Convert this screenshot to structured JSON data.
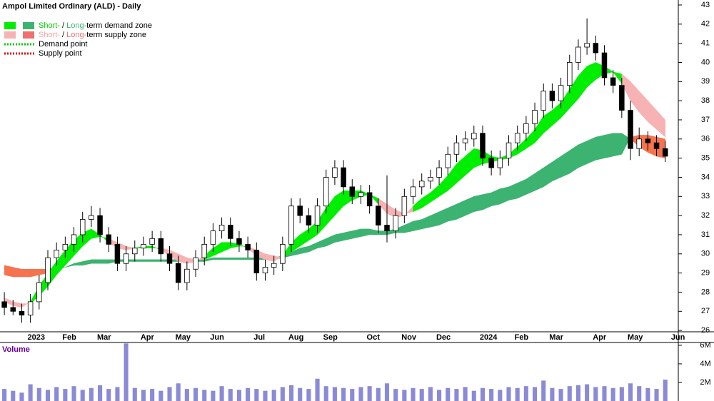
{
  "chart_data": {
    "type": "candlestick",
    "title": "Ampol Limited Ordinary (ALD) - Daily",
    "categories": [
      null,
      null,
      null,
      "2023",
      null,
      null,
      null,
      "Feb",
      null,
      null,
      null,
      "Mar",
      null,
      null,
      null,
      null,
      "Apr",
      null,
      null,
      null,
      "May",
      null,
      null,
      null,
      "Jun",
      null,
      null,
      null,
      null,
      "Jul",
      null,
      null,
      null,
      "Aug",
      null,
      null,
      null,
      "Sep",
      null,
      null,
      null,
      null,
      "Oct",
      null,
      null,
      null,
      "Nov",
      null,
      null,
      null,
      "Dec",
      null,
      null,
      null,
      null,
      "2024",
      null,
      null,
      null,
      "Feb",
      null,
      null,
      null,
      "Mar",
      null,
      null,
      null,
      null,
      "Apr",
      null,
      null,
      null,
      "May",
      null,
      null,
      null,
      null,
      "Jun"
    ],
    "open": [
      27.5,
      27.2,
      27.0,
      26.8,
      27.5,
      28.5,
      29.8,
      30.2,
      30.5,
      31.0,
      31.8,
      32.0,
      31.0,
      30.5,
      29.5,
      30.0,
      30.3,
      30.5,
      30.8,
      30.0,
      29.5,
      28.5,
      29.2,
      29.8,
      30.5,
      31.2,
      31.5,
      30.8,
      30.5,
      30.2,
      29.0,
      29.3,
      29.5,
      30.5,
      32.5,
      32.0,
      31.5,
      32.5,
      34.0,
      34.5,
      33.5,
      33.0,
      33.2,
      32.5,
      31.5,
      31.2,
      32.0,
      33.0,
      33.5,
      33.8,
      34.0,
      34.5,
      35.2,
      35.8,
      36.0,
      36.3,
      35.0,
      34.5,
      35.0,
      35.8,
      36.3,
      36.8,
      37.5,
      38.5,
      38.0,
      38.8,
      40.0,
      40.8,
      41.0,
      40.5,
      39.2,
      38.8,
      37.5,
      35.5,
      36.0,
      35.8,
      35.5,
      null
    ],
    "high": [
      28.0,
      27.6,
      27.4,
      27.9,
      28.9,
      30.2,
      30.6,
      30.9,
      31.4,
      32.2,
      32.5,
      32.4,
      31.4,
      30.9,
      30.4,
      30.7,
      30.9,
      31.2,
      31.2,
      30.4,
      29.9,
      29.6,
      30.2,
      30.9,
      31.6,
      31.9,
      31.9,
      31.2,
      30.9,
      30.6,
      29.7,
      29.9,
      30.9,
      32.9,
      32.9,
      32.4,
      32.9,
      34.4,
      34.9,
      34.9,
      33.9,
      33.6,
      33.6,
      32.9,
      34.1,
      32.4,
      33.4,
      33.9,
      34.2,
      34.4,
      34.9,
      35.6,
      36.2,
      36.4,
      36.7,
      36.7,
      35.4,
      35.4,
      36.2,
      36.7,
      37.2,
      37.9,
      38.9,
      38.9,
      39.2,
      40.4,
      41.2,
      42.3,
      41.4,
      40.9,
      39.6,
      39.2,
      38.0,
      36.6,
      36.4,
      36.2,
      35.9,
      null
    ],
    "low": [
      26.8,
      26.8,
      26.4,
      26.4,
      27.1,
      28.1,
      29.4,
      29.8,
      30.1,
      30.6,
      31.4,
      30.6,
      30.1,
      29.1,
      29.1,
      29.6,
      29.9,
      30.1,
      29.6,
      29.1,
      28.1,
      28.1,
      28.8,
      29.4,
      30.1,
      30.8,
      30.4,
      30.1,
      29.8,
      28.6,
      28.6,
      28.9,
      29.1,
      30.1,
      31.6,
      31.1,
      31.1,
      32.1,
      33.6,
      33.1,
      32.6,
      32.6,
      32.1,
      31.1,
      30.6,
      30.8,
      31.6,
      32.6,
      33.1,
      33.4,
      33.6,
      34.1,
      34.8,
      35.4,
      35.6,
      34.6,
      34.1,
      34.1,
      34.6,
      35.4,
      35.9,
      36.4,
      37.1,
      37.6,
      37.6,
      38.4,
      39.6,
      40.4,
      40.1,
      38.8,
      38.4,
      37.1,
      34.9,
      35.1,
      35.4,
      35.1,
      34.8,
      null
    ],
    "close": [
      27.2,
      27.0,
      26.8,
      27.5,
      28.5,
      29.8,
      30.2,
      30.5,
      31.0,
      31.8,
      32.0,
      31.0,
      30.5,
      29.5,
      30.0,
      30.3,
      30.5,
      30.8,
      30.0,
      29.5,
      28.5,
      29.2,
      29.8,
      30.5,
      31.2,
      31.5,
      30.8,
      30.5,
      30.2,
      29.0,
      29.3,
      29.5,
      30.5,
      32.5,
      32.0,
      31.5,
      32.5,
      34.0,
      34.5,
      33.5,
      33.0,
      33.2,
      32.5,
      31.5,
      31.2,
      32.0,
      33.0,
      33.5,
      33.8,
      34.0,
      34.5,
      35.2,
      35.8,
      36.0,
      36.3,
      35.0,
      34.5,
      35.0,
      35.8,
      36.3,
      36.8,
      37.5,
      38.5,
      38.0,
      38.8,
      40.0,
      40.8,
      41.0,
      40.5,
      39.2,
      38.8,
      37.5,
      35.5,
      36.0,
      35.8,
      35.5,
      35.1,
      null
    ],
    "up_color": "#ffffff",
    "down_color": "#000000",
    "ylim": [
      25.93,
      43.26
    ],
    "yticks": [
      26,
      27,
      28,
      29,
      30,
      31,
      32,
      33,
      34,
      35,
      36,
      37,
      38,
      39,
      40,
      41,
      42,
      43
    ],
    "zones": [
      {
        "fast": [
          28.9,
          28.8,
          28.8,
          28.8,
          28.9,
          29.0,
          29.2,
          29.3,
          29.5,
          29.6,
          29.7,
          29.7,
          29.7,
          29.7,
          29.7,
          29.7,
          29.7,
          29.7,
          29.7,
          29.7,
          29.7,
          29.7,
          29.7,
          29.7,
          29.8,
          29.8,
          29.8,
          29.8,
          29.8,
          29.8,
          29.8,
          29.8,
          29.9,
          30.1,
          30.3,
          30.4,
          30.6,
          30.8,
          31.0,
          31.1,
          31.2,
          31.3,
          31.3,
          31.2,
          31.2,
          31.3,
          31.5,
          31.7,
          31.8,
          32.0,
          32.2,
          32.4,
          32.6,
          32.8,
          33.0,
          33.1,
          33.2,
          33.4,
          33.5,
          33.7,
          33.9,
          34.2,
          34.5,
          34.8,
          35.1,
          35.4,
          35.7,
          35.9,
          36.1,
          36.2,
          36.3,
          36.3,
          36.0,
          35.6,
          35.3,
          35.1,
          35.0,
          null
        ],
        "slow": [
          29.4,
          29.3,
          29.2,
          29.2,
          29.2,
          29.2,
          29.3,
          29.3,
          29.4,
          29.4,
          29.5,
          29.5,
          29.5,
          29.6,
          29.6,
          29.6,
          29.6,
          29.6,
          29.6,
          29.6,
          29.6,
          29.6,
          29.6,
          29.6,
          29.7,
          29.7,
          29.7,
          29.7,
          29.7,
          29.7,
          29.7,
          29.7,
          29.8,
          29.9,
          30.0,
          30.1,
          30.3,
          30.4,
          30.6,
          30.7,
          30.8,
          30.9,
          31.0,
          31.0,
          31.0,
          31.1,
          31.1,
          31.2,
          31.3,
          31.4,
          31.5,
          31.7,
          31.8,
          32.0,
          32.2,
          32.3,
          32.5,
          32.6,
          32.8,
          32.9,
          33.1,
          33.3,
          33.5,
          33.8,
          34.0,
          34.2,
          34.5,
          34.7,
          34.9,
          35.0,
          35.1,
          35.2,
          36.1,
          36.2,
          36.2,
          36.1,
          36.0,
          null
        ],
        "demand_color": "#3cb371",
        "supply_color": "#f5734f"
      },
      {
        "fast": [
          27.5,
          27.3,
          27.2,
          27.5,
          28.3,
          29.0,
          29.6,
          30.2,
          30.7,
          31.1,
          31.3,
          31.0,
          30.6,
          30.3,
          30.2,
          30.3,
          30.4,
          30.4,
          30.2,
          29.9,
          29.6,
          29.5,
          29.6,
          29.9,
          30.3,
          30.6,
          30.6,
          30.5,
          30.3,
          29.9,
          29.7,
          29.6,
          29.9,
          30.6,
          31.0,
          31.3,
          31.7,
          32.4,
          33.0,
          33.3,
          33.3,
          33.3,
          33.1,
          32.6,
          32.1,
          31.9,
          32.0,
          32.5,
          32.9,
          33.2,
          33.6,
          34.1,
          34.7,
          35.1,
          35.5,
          35.4,
          35.1,
          35.0,
          35.2,
          35.6,
          36.0,
          36.5,
          37.2,
          37.5,
          37.9,
          38.6,
          39.3,
          39.8,
          40.0,
          39.8,
          39.5,
          38.9,
          38.0,
          37.4,
          36.9,
          36.5,
          36.1,
          null
        ],
        "slow": [
          27.7,
          27.5,
          27.4,
          27.4,
          27.8,
          28.3,
          28.9,
          29.4,
          29.9,
          30.4,
          30.8,
          30.9,
          30.8,
          30.6,
          30.4,
          30.3,
          30.3,
          30.3,
          30.3,
          30.2,
          30.0,
          29.8,
          29.7,
          29.7,
          29.9,
          30.1,
          30.3,
          30.4,
          30.4,
          30.2,
          30.0,
          29.9,
          29.8,
          30.1,
          30.4,
          30.7,
          31.0,
          31.5,
          32.0,
          32.5,
          32.8,
          33.0,
          33.1,
          32.9,
          32.6,
          32.3,
          32.1,
          32.2,
          32.4,
          32.7,
          33.0,
          33.3,
          33.7,
          34.1,
          34.5,
          34.7,
          34.8,
          34.9,
          35.0,
          35.2,
          35.5,
          35.8,
          36.3,
          36.7,
          37.1,
          37.6,
          38.1,
          38.7,
          39.1,
          39.4,
          39.5,
          39.4,
          39.0,
          38.5,
          38.0,
          37.5,
          37.0,
          null
        ],
        "demand_color": "#00ee00",
        "supply_color": "#f7b3b3"
      }
    ],
    "legend": [
      {
        "swatches": [
          "#00ee00",
          "#3cb371"
        ],
        "parts": [
          {
            "text": "Short-",
            "color": "#00cc00"
          },
          {
            "text": " / "
          },
          {
            "text": "Long-",
            "color": "#3cb371"
          },
          {
            "text": "term demand zone"
          }
        ]
      },
      {
        "swatches": [
          "#f7b3b3",
          "#f07070"
        ],
        "parts": [
          {
            "text": "Short-",
            "color": "#f4a0a0"
          },
          {
            "text": " / "
          },
          {
            "text": "Long-",
            "color": "#f07070"
          },
          {
            "text": "term supply zone"
          }
        ]
      },
      {
        "line_color": "#00cc00",
        "parts": [
          {
            "text": "Demand point"
          }
        ]
      },
      {
        "line_color": "#dd0000",
        "parts": [
          {
            "text": "Supply point"
          }
        ]
      }
    ],
    "volume": {
      "label": "Volume",
      "color": "#8a8ad6",
      "values": [
        1300000,
        1100000,
        900000,
        1800000,
        1400000,
        1200000,
        1500000,
        1300000,
        1600000,
        1200000,
        1400000,
        1700000,
        1300000,
        1500000,
        6200000,
        1400000,
        1200000,
        1300000,
        1100000,
        1500000,
        1900000,
        1300000,
        1400000,
        1200000,
        1100000,
        1600000,
        1300000,
        1200000,
        1400000,
        1300000,
        1100000,
        1200000,
        1500000,
        1700000,
        1400000,
        1300000,
        2400000,
        1600000,
        1500000,
        1400000,
        1300000,
        1500000,
        1600000,
        1400000,
        1900000,
        1300000,
        1200000,
        1400000,
        1300000,
        1500000,
        1200000,
        1400000,
        1300000,
        1500000,
        1100000,
        1400000,
        1300000,
        1200000,
        1500000,
        1400000,
        1600000,
        1500000,
        2200000,
        1400000,
        1300000,
        1600000,
        1700000,
        1800000,
        1500000,
        1600000,
        1400000,
        1500000,
        1900000,
        1600000,
        1400000,
        1300000,
        2300000,
        null
      ],
      "ylim": [
        0,
        6300000
      ],
      "yticks": [
        {
          "value": 2000000,
          "label": "2M"
        },
        {
          "value": 4000000,
          "label": "4M"
        },
        {
          "value": 6000000,
          "label": "6M"
        }
      ]
    }
  }
}
